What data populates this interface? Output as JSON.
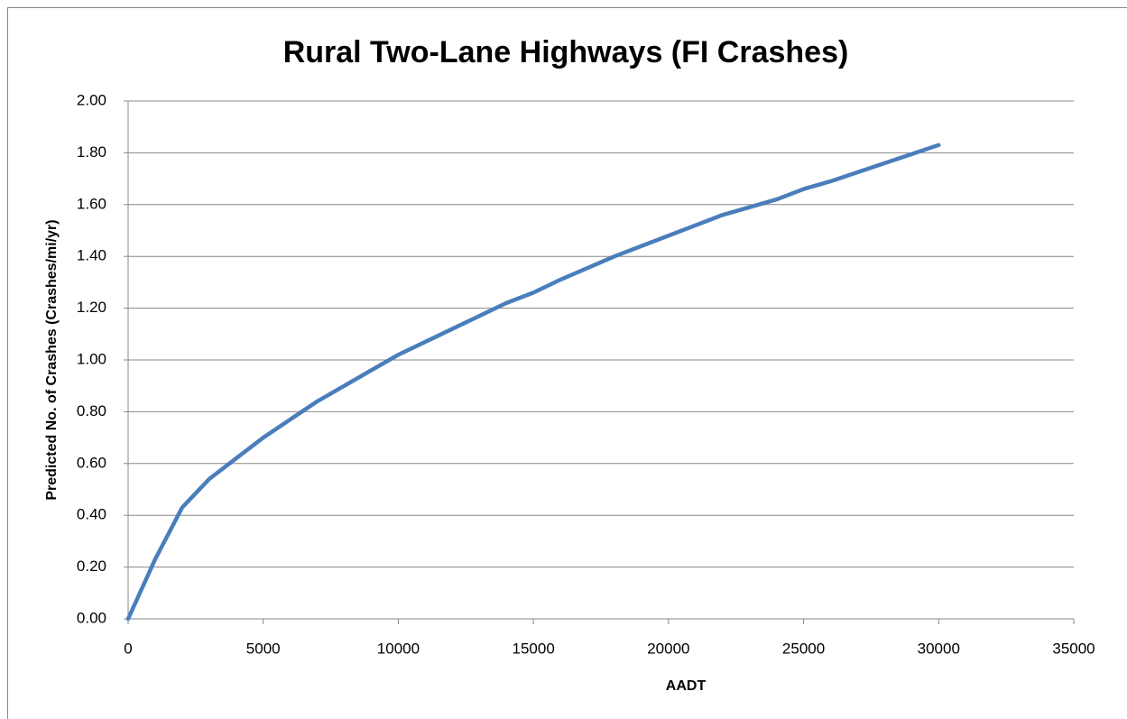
{
  "chart_data": {
    "type": "line",
    "title": "Rural Two-Lane Highways (FI Crashes)",
    "x_label": "AADT",
    "y_label": "Predicted No. of Crashes (Crashes/mi/yr)",
    "x": [
      0,
      1000,
      2000,
      3000,
      4000,
      5000,
      6000,
      7000,
      8000,
      9000,
      10000,
      12000,
      14000,
      15000,
      16000,
      18000,
      20000,
      22000,
      24000,
      25000,
      26000,
      28000,
      30000
    ],
    "series": [
      {
        "name": "FI Crashes",
        "color": "#4a7ebb",
        "values": [
          0,
          0.23,
          0.43,
          0.54,
          0.62,
          0.7,
          0.77,
          0.84,
          0.9,
          0.96,
          1.02,
          1.12,
          1.22,
          1.26,
          1.31,
          1.4,
          1.48,
          1.56,
          1.62,
          1.66,
          1.69,
          1.76,
          1.83
        ]
      }
    ],
    "xlim": [
      0,
      35000
    ],
    "xticks": [
      0,
      5000,
      10000,
      15000,
      20000,
      25000,
      30000,
      35000
    ],
    "ylim": [
      0,
      2
    ],
    "yticks": [
      {
        "value": 0,
        "label": "0.00"
      },
      {
        "value": 0.2,
        "label": "0.20"
      },
      {
        "value": 0.4,
        "label": "0.40"
      },
      {
        "value": 0.6,
        "label": "0.60"
      },
      {
        "value": 0.8,
        "label": "0.80"
      },
      {
        "value": 1,
        "label": "1.00"
      },
      {
        "value": 1.2,
        "label": "1.20"
      },
      {
        "value": 1.4,
        "label": "1.40"
      },
      {
        "value": 1.6,
        "label": "1.60"
      },
      {
        "value": 1.8,
        "label": "1.80"
      },
      {
        "value": 2,
        "label": "2.00"
      }
    ],
    "grid": true
  }
}
